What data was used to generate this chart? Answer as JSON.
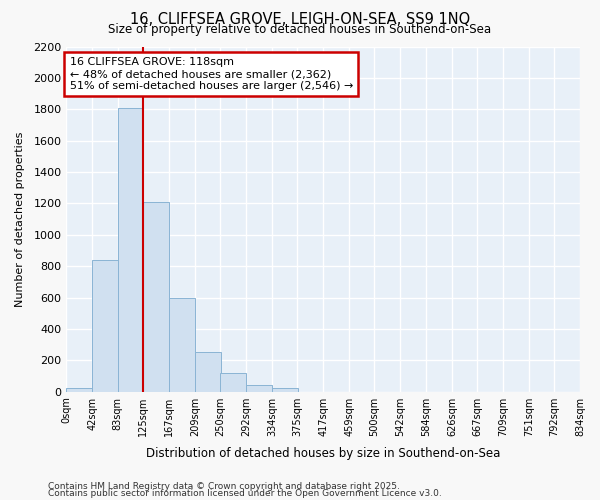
{
  "title": "16, CLIFFSEA GROVE, LEIGH-ON-SEA, SS9 1NQ",
  "subtitle": "Size of property relative to detached houses in Southend-on-Sea",
  "xlabel": "Distribution of detached houses by size in Southend-on-Sea",
  "ylabel": "Number of detached properties",
  "bar_color": "#d0e0f0",
  "bar_edge_color": "#8ab4d4",
  "bg_color": "#e8f0f8",
  "grid_color": "#ffffff",
  "annotation_box_color": "#cc0000",
  "vline_color": "#cc0000",
  "bins": [
    0,
    42,
    83,
    125,
    167,
    209,
    250,
    292,
    334,
    375,
    417,
    459,
    500,
    542,
    584,
    626,
    667,
    709,
    751,
    792,
    834
  ],
  "bin_labels": [
    "0sqm",
    "42sqm",
    "83sqm",
    "125sqm",
    "167sqm",
    "209sqm",
    "250sqm",
    "292sqm",
    "334sqm",
    "375sqm",
    "417sqm",
    "459sqm",
    "500sqm",
    "542sqm",
    "584sqm",
    "626sqm",
    "667sqm",
    "709sqm",
    "751sqm",
    "792sqm",
    "834sqm"
  ],
  "bar_heights": [
    25,
    840,
    1810,
    1210,
    600,
    250,
    120,
    45,
    25,
    0,
    0,
    0,
    0,
    0,
    0,
    0,
    0,
    0,
    0,
    0
  ],
  "ylim": [
    0,
    2200
  ],
  "yticks": [
    0,
    200,
    400,
    600,
    800,
    1000,
    1200,
    1400,
    1600,
    1800,
    2000,
    2200
  ],
  "vline_x": 125,
  "annotation_title": "16 CLIFFSEA GROVE: 118sqm",
  "annotation_line1": "← 48% of detached houses are smaller (2,362)",
  "annotation_line2": "51% of semi-detached houses are larger (2,546) →",
  "footnote1": "Contains HM Land Registry data © Crown copyright and database right 2025.",
  "footnote2": "Contains public sector information licensed under the Open Government Licence v3.0.",
  "fig_bg": "#f8f8f8"
}
